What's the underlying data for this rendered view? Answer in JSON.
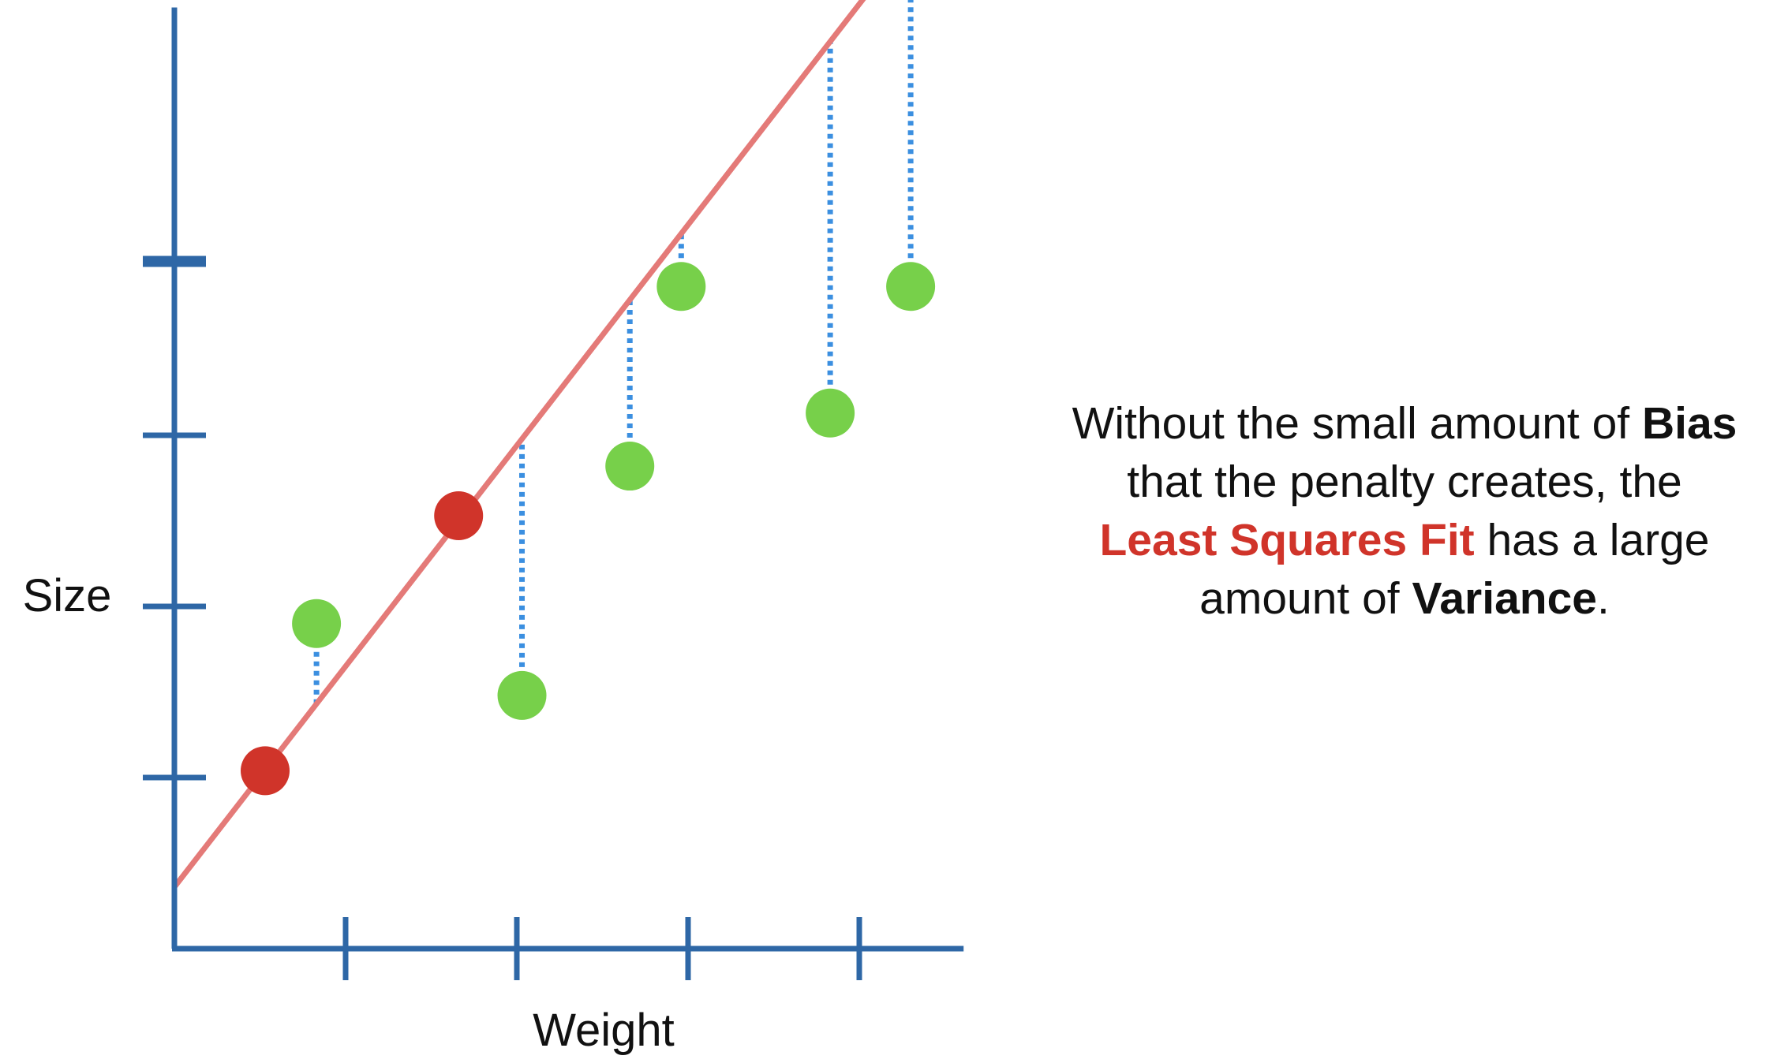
{
  "chart_data": {
    "type": "scatter",
    "xlabel": "Weight",
    "ylabel": "Size",
    "xlim": [
      0,
      4.6
    ],
    "ylim": [
      0,
      5.5
    ],
    "x_ticks": [
      1,
      2,
      3,
      4
    ],
    "y_ticks": [
      1,
      2,
      3,
      4
    ],
    "grid": false,
    "legend": "none",
    "series": [
      {
        "color": "#d0342a",
        "points": [
          [
            0.53,
            1.04
          ],
          [
            1.66,
            2.53
          ]
        ]
      },
      {
        "color": "#77d04a",
        "points": [
          [
            0.83,
            1.9
          ],
          [
            2.03,
            1.48
          ],
          [
            2.66,
            2.82
          ],
          [
            2.96,
            3.87
          ],
          [
            3.83,
            3.13
          ],
          [
            4.3,
            3.87
          ]
        ]
      }
    ],
    "fit_line": {
      "label": "Least Squares Fit",
      "color": "#e47a78",
      "intercept": 0.36,
      "slope": 1.29
    },
    "residuals": {
      "color": "#3b8fe0",
      "style": "dotted"
    },
    "axis_color": "#2e67a6"
  },
  "caption": {
    "line1_a": "Without the small amount of ",
    "line1_b": "Bias",
    "line2": "that the penalty creates, the",
    "line3_a": "Least Squares Fit",
    "line3_b": " has a large",
    "line4_a": "amount of ",
    "line4_b": "Variance",
    "line4_c": "."
  }
}
